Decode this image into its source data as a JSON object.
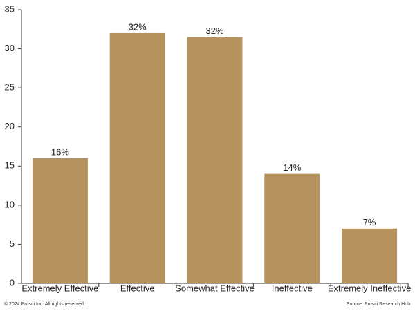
{
  "chart_data": {
    "type": "bar",
    "categories": [
      "Extremely Effective",
      "Effective",
      "Somewhat Effective",
      "Ineffective",
      "Extremely Ineffective"
    ],
    "values": [
      16,
      32,
      31.5,
      14,
      7
    ],
    "value_labels": [
      "16%",
      "32%",
      "32%",
      "14%",
      "7%"
    ],
    "color": "#b6925f",
    "ylim": [
      0,
      35
    ],
    "yticks": [
      0,
      5,
      10,
      15,
      20,
      25,
      30,
      35
    ],
    "grid": false,
    "footer_left": "© 2024 Prosci Inc. All rights reserved.",
    "footer_right": "Source: Prosci Research Hub"
  }
}
